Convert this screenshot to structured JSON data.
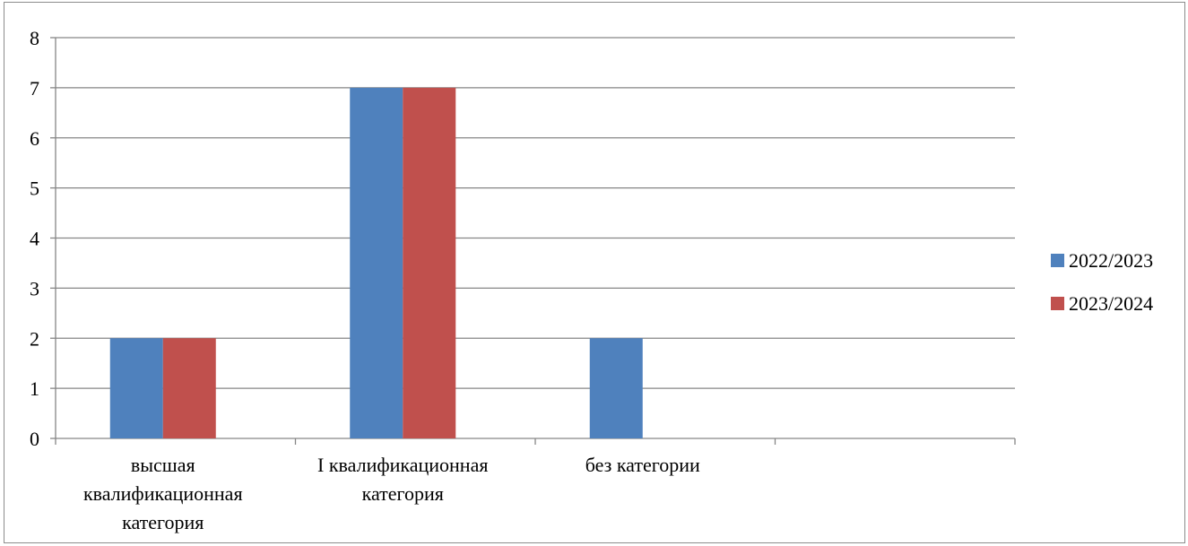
{
  "chart_data": {
    "type": "bar",
    "categories": [
      [
        "высшая",
        "квалификационная",
        "категория"
      ],
      [
        "I квалификационная",
        "категория"
      ],
      [
        "без категории"
      ],
      []
    ],
    "series": [
      {
        "name": "2022/2023",
        "color": "#4f81bd",
        "values": [
          2,
          7,
          2,
          null
        ]
      },
      {
        "name": "2023/2024",
        "color": "#c0504d",
        "values": [
          2,
          7,
          null,
          null
        ]
      }
    ],
    "y_ticks": [
      "0",
      "1",
      "2",
      "3",
      "4",
      "5",
      "6",
      "7",
      "8"
    ],
    "ylim": [
      0,
      8
    ],
    "grid": true,
    "legend_position": "right"
  }
}
